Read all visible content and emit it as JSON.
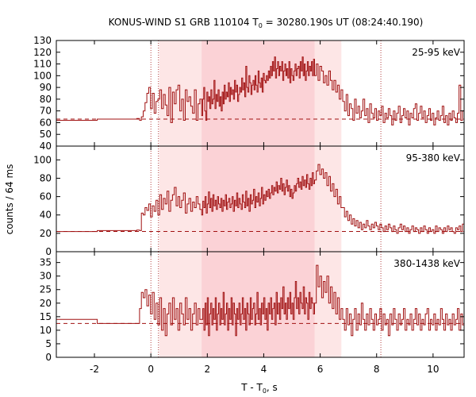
{
  "chart_data": {
    "type": "line",
    "title": "KONUS-WIND S1 GRB 110104 T",
    "title_sub": "0",
    "title_rest": " = 30280.190s UT (08:24:40.190)",
    "xlabel": "T - T",
    "xlabel_sub": "0",
    "xlabel_rest": ", s",
    "ylabel": "counts / 64 ms",
    "xlim": [
      -3.35,
      11.1
    ],
    "xticks": [
      -2,
      0,
      2,
      4,
      6,
      8,
      10
    ],
    "line_color": "#a01010",
    "band_outer": {
      "x": [
        0.3,
        6.75
      ],
      "color": "#fde6e6"
    },
    "band_inner": {
      "x": [
        1.8,
        5.8
      ],
      "color": "#fbd2d6"
    },
    "dotted_lines_x": [
      0.0,
      0.27,
      8.15
    ],
    "panels": [
      {
        "label": "25-95 keV",
        "ylim": [
          40,
          130
        ],
        "yticks": [
          40,
          50,
          60,
          70,
          80,
          90,
          100,
          110,
          120,
          130
        ],
        "background": 63,
        "steps": [
          [
            -3.35,
            62
          ],
          [
            -1.9,
            63
          ],
          [
            -1.3,
            63
          ],
          [
            -0.5,
            63.5
          ],
          [
            -0.4,
            63
          ]
        ],
        "segments": [
          {
            "x0": -0.4,
            "x1": 1.8,
            "vals": [
              62,
              65,
              70,
              77,
              85,
              90,
              72,
              85,
              68,
              78,
              80,
              88,
              72,
              84,
              75,
              66,
              90,
              60,
              86,
              76,
              88,
              92,
              70,
              80,
              62,
              88,
              78,
              82,
              74,
              68,
              88,
              62,
              76,
              80
            ]
          },
          {
            "x0": 1.8,
            "x1": 5.8,
            "vals": [
              66,
              80,
              90,
              70,
              62,
              86,
              78,
              82,
              72,
              88,
              76,
              80,
              96,
              72,
              84,
              78,
              88,
              74,
              82,
              70,
              86,
              76,
              92,
              80,
              86,
              82,
              94,
              78,
              90,
              84,
              88,
              80,
              96,
              86,
              92,
              78,
              84,
              90,
              86,
              98,
              88,
              94,
              82,
              108,
              90,
              86,
              100,
              94,
              84,
              92,
              96,
              88,
              100,
              92,
              86,
              104,
              94,
              90,
              98,
              86,
              102,
              96,
              94,
              100,
              96,
              104,
              98,
              108,
              100,
              112,
              104,
              116,
              98,
              106,
              112,
              100,
              108,
              104,
              112,
              96,
              104,
              110,
              100,
              106,
              98,
              112,
              94,
              106,
              100,
              96,
              104,
              110,
              100,
              106,
              108,
              98,
              112,
              104,
              116,
              100,
              110,
              96,
              104,
              112,
              100,
              108,
              104,
              112,
              100,
              114
            ]
          },
          {
            "x0": 5.8,
            "x1": 6.8,
            "vals": [
              100,
              110,
              96,
              108,
              104,
              94,
              100,
              92,
              104,
              96,
              88,
              96,
              86,
              92,
              80,
              88
            ]
          },
          {
            "x0": 6.8,
            "x1": 11.1,
            "vals": [
              78,
              70,
              84,
              66,
              76,
              72,
              62,
              80,
              68,
              74,
              64,
              70,
              80,
              66,
              72,
              60,
              76,
              68,
              64,
              72,
              62,
              70,
              66,
              74,
              60,
              68,
              64,
              72,
              66,
              58,
              70,
              62,
              68,
              74,
              60,
              66,
              72,
              64,
              70,
              58,
              68,
              64,
              72,
              76,
              62,
              68,
              74,
              64,
              70,
              60,
              66,
              72,
              62,
              68,
              58,
              64,
              70,
              62,
              66,
              74,
              60,
              66,
              58,
              68,
              62,
              70,
              64,
              60,
              68,
              92,
              62,
              70
            ]
          }
        ]
      },
      {
        "label": "95-380 keV",
        "ylim": [
          0,
          115
        ],
        "yticks": [
          0,
          20,
          40,
          60,
          80,
          100
        ],
        "background": 22,
        "steps": [
          [
            -3.35,
            22
          ],
          [
            -1.9,
            23
          ],
          [
            -1.3,
            23
          ],
          [
            -0.5,
            23.5
          ],
          [
            -0.4,
            23
          ]
        ],
        "segments": [
          {
            "x0": -0.4,
            "x1": 1.8,
            "vals": [
              23,
              42,
              40,
              48,
              45,
              52,
              38,
              50,
              44,
              56,
              40,
              62,
              46,
              58,
              52,
              66,
              44,
              56,
              62,
              70,
              50,
              60,
              48,
              56,
              64,
              42,
              52,
              58,
              44,
              54,
              48,
              60,
              52,
              46
            ]
          },
          {
            "x0": 1.8,
            "x1": 5.8,
            "vals": [
              40,
              55,
              48,
              60,
              42,
              52,
              65,
              48,
              58,
              44,
              62,
              50,
              56,
              46,
              60,
              52,
              48,
              58,
              44,
              56,
              50,
              62,
              46,
              54,
              58,
              48,
              52,
              60,
              44,
              56,
              50,
              64,
              48,
              58,
              52,
              46,
              62,
              54,
              48,
              66,
              50,
              58,
              44,
              62,
              52,
              56,
              68,
              48,
              60,
              54,
              64,
              50,
              58,
              70,
              52,
              62,
              56,
              66,
              60,
              68,
              58,
              64,
              72,
              62,
              70,
              66,
              76,
              64,
              72,
              68,
              80,
              66,
              74,
              62,
              70,
              78,
              66,
              72,
              60,
              68,
              58,
              64,
              72,
              66,
              74,
              80,
              70,
              76,
              68,
              82,
              72,
              78,
              70,
              84,
              74,
              68,
              80,
              72,
              86,
              74
            ]
          },
          {
            "x0": 5.8,
            "x1": 6.8,
            "vals": [
              78,
              88,
              95,
              84,
              90,
              80,
              86,
              72,
              82,
              66,
              74,
              60,
              68,
              52,
              60,
              48
            ]
          },
          {
            "x0": 6.8,
            "x1": 11.1,
            "vals": [
              48,
              38,
              44,
              34,
              40,
              30,
              36,
              28,
              34,
              26,
              32,
              24,
              30,
              26,
              34,
              28,
              24,
              30,
              26,
              32,
              28,
              24,
              30,
              26,
              22,
              28,
              24,
              30,
              26,
              22,
              28,
              24,
              20,
              26,
              30,
              24,
              28,
              22,
              26,
              20,
              24,
              28,
              22,
              26,
              24,
              20,
              26,
              22,
              28,
              24,
              20,
              26,
              22,
              24,
              20,
              28,
              22,
              26,
              24,
              20,
              26,
              22,
              28,
              24,
              26,
              22,
              20,
              26,
              24,
              28,
              22,
              30
            ]
          }
        ]
      },
      {
        "label": "380-1438 keV",
        "ylim": [
          0,
          39
        ],
        "yticks": [
          0,
          5,
          10,
          15,
          20,
          25,
          30,
          35
        ],
        "background": 12.5,
        "steps": [
          [
            -3.35,
            14
          ],
          [
            -1.9,
            12.5
          ],
          [
            -1.3,
            12.5
          ],
          [
            -0.5,
            12.5
          ],
          [
            -0.4,
            12.5
          ]
        ],
        "segments": [
          {
            "x0": -0.4,
            "x1": 1.8,
            "vals": [
              18,
              24,
              22,
              25,
              19,
              23,
              16,
              24,
              14,
              20,
              12,
              22,
              10,
              18,
              8,
              16,
              20,
              12,
              22,
              14,
              18,
              10,
              20,
              16,
              12,
              22,
              14,
              18,
              10,
              16,
              20,
              12,
              18,
              14
            ]
          },
          {
            "x0": 1.8,
            "x1": 5.8,
            "vals": [
              14,
              18,
              10,
              20,
              12,
              22,
              8,
              16,
              20,
              12,
              18,
              14,
              22,
              10,
              16,
              20,
              12,
              18,
              14,
              24,
              12,
              16,
              20,
              10,
              18,
              14,
              22,
              12,
              20,
              16,
              8,
              18,
              14,
              20,
              12,
              16,
              22,
              14,
              18,
              10,
              20,
              16,
              12,
              22,
              14,
              18,
              20,
              12,
              16,
              24,
              14,
              18,
              12,
              20,
              16,
              22,
              14,
              18,
              10,
              20,
              16,
              22,
              14,
              18,
              20,
              12,
              24,
              16,
              20,
              14,
              22,
              18,
              26,
              16,
              20,
              14,
              22,
              18,
              24,
              16,
              20,
              14,
              22,
              28,
              18,
              22,
              16,
              24,
              20,
              18,
              26,
              16,
              22,
              20,
              14,
              24,
              18,
              22,
              20,
              16
            ]
          },
          {
            "x0": 5.8,
            "x1": 6.8,
            "vals": [
              20,
              34,
              26,
              30,
              22,
              28,
              24,
              30,
              20,
              26,
              18,
              24,
              16,
              22,
              14,
              18
            ]
          },
          {
            "x0": 6.8,
            "x1": 11.1,
            "vals": [
              14,
              10,
              18,
              12,
              16,
              8,
              14,
              18,
              10,
              16,
              12,
              20,
              14,
              10,
              16,
              12,
              18,
              14,
              10,
              16,
              12,
              14,
              18,
              10,
              16,
              12,
              14,
              8,
              16,
              12,
              18,
              14,
              10,
              16,
              12,
              14,
              18,
              10,
              14,
              12,
              16,
              10,
              14,
              18,
              12,
              16,
              10,
              14,
              12,
              16,
              18,
              10,
              14,
              12,
              16,
              10,
              14,
              12,
              18,
              14,
              10,
              16,
              12,
              14,
              10,
              16,
              12,
              14,
              18,
              10,
              16,
              12
            ]
          }
        ]
      }
    ]
  }
}
